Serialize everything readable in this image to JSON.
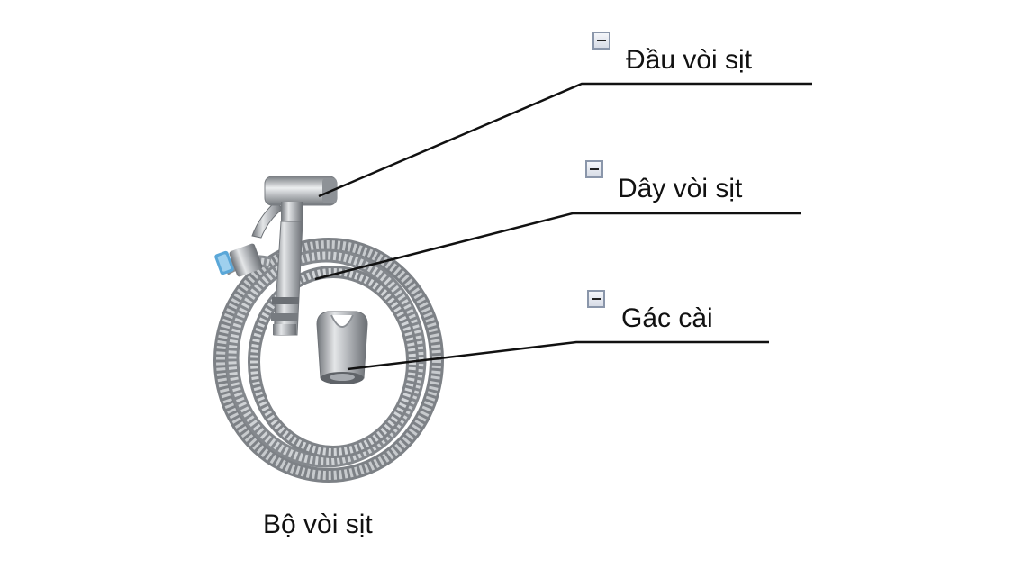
{
  "callouts": [
    {
      "label": "Đầu vòi sịt",
      "control_icon": "collapse-minus-icon"
    },
    {
      "label": "Dây vòi sịt",
      "control_icon": "collapse-minus-icon"
    },
    {
      "label": "Gác cài",
      "control_icon": "collapse-minus-icon"
    }
  ],
  "caption": "Bộ vòi sịt",
  "illustration": {
    "subject": "bidet-sprayer-set-photo"
  },
  "colors": {
    "leader_line": "#111111",
    "steel": "#a9acb0",
    "background": "#ffffff"
  }
}
